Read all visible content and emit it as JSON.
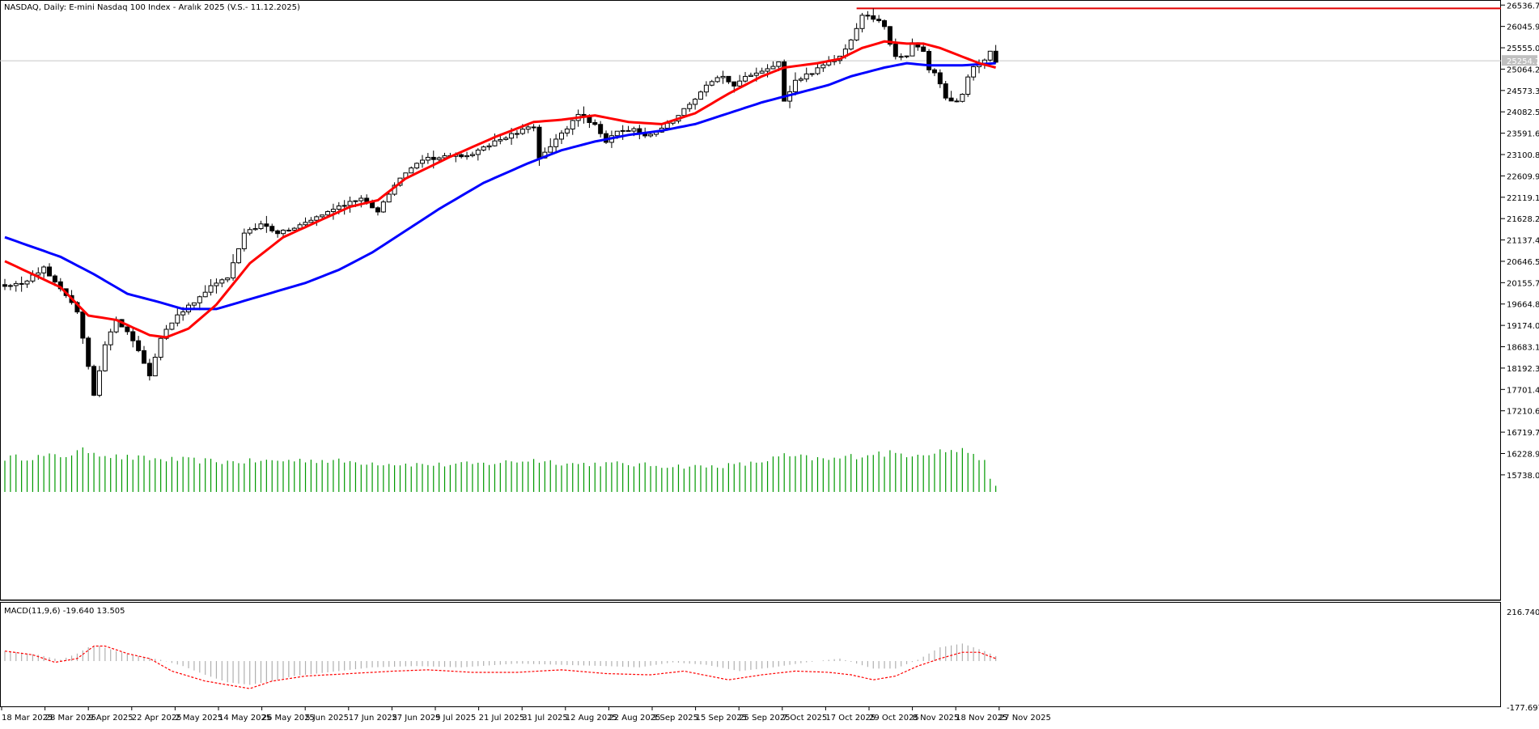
{
  "header": {
    "title": "NASDAQ, Daily:  E-mini Nasdaq 100 Index - Aralık 2025 (V.S.- 11.12.2025)"
  },
  "macd_panel": {
    "label": "MACD(11,9,6) -19.640 13.505",
    "axis_top": "216.740",
    "axis_bottom": "-177.697"
  },
  "colors": {
    "ema_fast": "#ff0000",
    "ema_slow": "#0000ff",
    "volume": "#009900",
    "resistance": "#e00000",
    "signal": "#ff0000",
    "histogram": "#b0b0b0"
  },
  "chart_data": [
    {
      "type": "candlestick",
      "title": "NASDAQ, Daily:  E-mini Nasdaq 100 Index - Aralık 2025 (V.S.- 11.12.2025)",
      "y_ticks": [
        "26536.75",
        "26045.90",
        "25555.05",
        "25064.20",
        "24573.35",
        "24082.50",
        "23591.65",
        "23100.80",
        "22609.95",
        "22119.10",
        "21628.25",
        "21137.40",
        "20646.55",
        "20155.70",
        "19664.85",
        "19174.00",
        "18683.15",
        "18192.30",
        "17701.45",
        "17210.60",
        "16719.75",
        "16228.90",
        "15738.05"
      ],
      "ylim": [
        15550,
        26560
      ],
      "price_readout": "25254.75",
      "resistance_level": 26460,
      "x_labels": [
        "18 Mar 2025",
        "28 Mar 2025",
        "9 Apr 2025",
        "22 Apr 2025",
        "2 May 2025",
        "14 May 2025",
        "26 May 2025",
        "5 Jun 2025",
        "17 Jun 2025",
        "27 Jun 2025",
        "9 Jul 2025",
        "21 Jul 2025",
        "31 Jul 2025",
        "12 Aug 2025",
        "22 Aug 2025",
        "3 Sep 2025",
        "15 Sep 2025",
        "25 Sep 2025",
        "7 Oct 2025",
        "17 Oct 2025",
        "29 Oct 2025",
        "8 Nov 2025",
        "18 Nov 2025",
        "27 Nov 2025"
      ],
      "close_keypoints": [
        [
          0,
          20050
        ],
        [
          4,
          20200
        ],
        [
          7,
          20500
        ],
        [
          10,
          20000
        ],
        [
          13,
          19500
        ],
        [
          16,
          17600
        ],
        [
          18,
          18700
        ],
        [
          20,
          19300
        ],
        [
          22,
          19050
        ],
        [
          24,
          18600
        ],
        [
          26,
          18050
        ],
        [
          28,
          18900
        ],
        [
          31,
          19400
        ],
        [
          34,
          19700
        ],
        [
          37,
          20100
        ],
        [
          40,
          20250
        ],
        [
          43,
          21300
        ],
        [
          46,
          21500
        ],
        [
          49,
          21300
        ],
        [
          52,
          21400
        ],
        [
          55,
          21600
        ],
        [
          58,
          21800
        ],
        [
          61,
          21950
        ],
        [
          64,
          22100
        ],
        [
          67,
          21800
        ],
        [
          70,
          22400
        ],
        [
          73,
          22800
        ],
        [
          76,
          23000
        ],
        [
          80,
          23050
        ],
        [
          84,
          23100
        ],
        [
          88,
          23400
        ],
        [
          92,
          23600
        ],
        [
          95,
          23750
        ],
        [
          96,
          23050
        ],
        [
          98,
          23300
        ],
        [
          101,
          23700
        ],
        [
          103,
          24000
        ],
        [
          106,
          23800
        ],
        [
          108,
          23400
        ],
        [
          110,
          23600
        ],
        [
          113,
          23700
        ],
        [
          115,
          23500
        ],
        [
          118,
          23700
        ],
        [
          121,
          24000
        ],
        [
          124,
          24400
        ],
        [
          127,
          24800
        ],
        [
          129,
          24900
        ],
        [
          131,
          24700
        ],
        [
          134,
          24950
        ],
        [
          137,
          25100
        ],
        [
          139,
          25200
        ],
        [
          140,
          24300
        ],
        [
          142,
          24800
        ],
        [
          145,
          25000
        ],
        [
          148,
          25200
        ],
        [
          150,
          25350
        ],
        [
          152,
          25700
        ],
        [
          154,
          26300
        ],
        [
          156,
          26250
        ],
        [
          158,
          26050
        ],
        [
          159,
          25600
        ],
        [
          160,
          25350
        ],
        [
          162,
          25400
        ],
        [
          163,
          25650
        ],
        [
          165,
          25500
        ],
        [
          166,
          25050
        ],
        [
          167,
          25000
        ],
        [
          168,
          24700
        ],
        [
          169,
          24400
        ],
        [
          171,
          24300
        ],
        [
          172,
          24450
        ],
        [
          173,
          24900
        ],
        [
          174,
          25100
        ],
        [
          176,
          25250
        ],
        [
          177,
          25450
        ],
        [
          178,
          25254.75
        ]
      ],
      "ema_fast_keypoints": [
        [
          0,
          20650
        ],
        [
          10,
          20050
        ],
        [
          15,
          19400
        ],
        [
          20,
          19300
        ],
        [
          26,
          18950
        ],
        [
          29,
          18900
        ],
        [
          33,
          19100
        ],
        [
          38,
          19650
        ],
        [
          44,
          20600
        ],
        [
          50,
          21200
        ],
        [
          56,
          21550
        ],
        [
          62,
          21900
        ],
        [
          67,
          22050
        ],
        [
          72,
          22550
        ],
        [
          80,
          23050
        ],
        [
          88,
          23500
        ],
        [
          95,
          23850
        ],
        [
          100,
          23900
        ],
        [
          106,
          24000
        ],
        [
          112,
          23850
        ],
        [
          118,
          23800
        ],
        [
          124,
          24050
        ],
        [
          130,
          24500
        ],
        [
          136,
          24900
        ],
        [
          140,
          25100
        ],
        [
          146,
          25200
        ],
        [
          150,
          25300
        ],
        [
          154,
          25550
        ],
        [
          158,
          25700
        ],
        [
          162,
          25650
        ],
        [
          165,
          25650
        ],
        [
          168,
          25550
        ],
        [
          172,
          25350
        ],
        [
          175,
          25200
        ],
        [
          178,
          25100
        ]
      ],
      "ema_slow_keypoints": [
        [
          0,
          21200
        ],
        [
          10,
          20750
        ],
        [
          16,
          20350
        ],
        [
          22,
          19900
        ],
        [
          28,
          19700
        ],
        [
          32,
          19550
        ],
        [
          38,
          19550
        ],
        [
          46,
          19850
        ],
        [
          54,
          20150
        ],
        [
          60,
          20450
        ],
        [
          66,
          20850
        ],
        [
          72,
          21350
        ],
        [
          78,
          21850
        ],
        [
          86,
          22450
        ],
        [
          94,
          22900
        ],
        [
          100,
          23200
        ],
        [
          106,
          23400
        ],
        [
          112,
          23550
        ],
        [
          118,
          23650
        ],
        [
          124,
          23800
        ],
        [
          130,
          24050
        ],
        [
          136,
          24300
        ],
        [
          142,
          24500
        ],
        [
          148,
          24700
        ],
        [
          152,
          24900
        ],
        [
          158,
          25100
        ],
        [
          162,
          25200
        ],
        [
          166,
          25150
        ],
        [
          172,
          25150
        ],
        [
          178,
          25200
        ]
      ],
      "volume_peaks": [
        [
          0,
          0.7
        ],
        [
          10,
          0.74
        ],
        [
          15,
          0.86
        ],
        [
          20,
          0.72
        ],
        [
          26,
          0.68
        ],
        [
          32,
          0.66
        ],
        [
          40,
          0.62
        ],
        [
          48,
          0.64
        ],
        [
          55,
          0.66
        ],
        [
          62,
          0.62
        ],
        [
          70,
          0.58
        ],
        [
          78,
          0.56
        ],
        [
          86,
          0.58
        ],
        [
          95,
          0.66
        ],
        [
          102,
          0.58
        ],
        [
          110,
          0.58
        ],
        [
          118,
          0.54
        ],
        [
          126,
          0.52
        ],
        [
          134,
          0.58
        ],
        [
          140,
          0.74
        ],
        [
          148,
          0.66
        ],
        [
          156,
          0.8
        ],
        [
          162,
          0.78
        ],
        [
          166,
          0.82
        ],
        [
          170,
          0.86
        ],
        [
          174,
          0.82
        ],
        [
          176,
          0.6
        ],
        [
          177,
          0.25
        ],
        [
          178,
          0.14
        ]
      ]
    },
    {
      "type": "bar",
      "title": "MACD(11,9,6) -19.640 13.505",
      "ylim": [
        -177.697,
        216.74
      ],
      "histogram_keypoints": [
        [
          0,
          40
        ],
        [
          6,
          25
        ],
        [
          10,
          5
        ],
        [
          13,
          30
        ],
        [
          15,
          55
        ],
        [
          17,
          60
        ],
        [
          20,
          40
        ],
        [
          24,
          20
        ],
        [
          28,
          5
        ],
        [
          32,
          -20
        ],
        [
          36,
          -55
        ],
        [
          40,
          -85
        ],
        [
          44,
          -95
        ],
        [
          48,
          -80
        ],
        [
          52,
          -60
        ],
        [
          58,
          -45
        ],
        [
          66,
          -25
        ],
        [
          74,
          -20
        ],
        [
          82,
          -25
        ],
        [
          92,
          -10
        ],
        [
          100,
          -15
        ],
        [
          108,
          -20
        ],
        [
          114,
          -25
        ],
        [
          120,
          -5
        ],
        [
          126,
          -15
        ],
        [
          132,
          -40
        ],
        [
          138,
          -25
        ],
        [
          144,
          -5
        ],
        [
          150,
          10
        ],
        [
          156,
          -30
        ],
        [
          160,
          -30
        ],
        [
          164,
          5
        ],
        [
          168,
          55
        ],
        [
          172,
          70
        ],
        [
          176,
          40
        ],
        [
          178,
          20
        ]
      ],
      "signal_keypoints": [
        [
          0,
          40
        ],
        [
          5,
          25
        ],
        [
          9,
          -5
        ],
        [
          13,
          10
        ],
        [
          16,
          60
        ],
        [
          18,
          60
        ],
        [
          22,
          30
        ],
        [
          26,
          10
        ],
        [
          30,
          -40
        ],
        [
          36,
          -80
        ],
        [
          40,
          -95
        ],
        [
          44,
          -110
        ],
        [
          48,
          -80
        ],
        [
          54,
          -60
        ],
        [
          62,
          -50
        ],
        [
          70,
          -40
        ],
        [
          76,
          -35
        ],
        [
          84,
          -45
        ],
        [
          92,
          -45
        ],
        [
          100,
          -35
        ],
        [
          108,
          -50
        ],
        [
          116,
          -55
        ],
        [
          122,
          -40
        ],
        [
          130,
          -75
        ],
        [
          136,
          -55
        ],
        [
          142,
          -40
        ],
        [
          148,
          -45
        ],
        [
          152,
          -55
        ],
        [
          156,
          -75
        ],
        [
          160,
          -60
        ],
        [
          164,
          -20
        ],
        [
          168,
          10
        ],
        [
          172,
          35
        ],
        [
          175,
          35
        ],
        [
          178,
          10
        ]
      ]
    }
  ]
}
